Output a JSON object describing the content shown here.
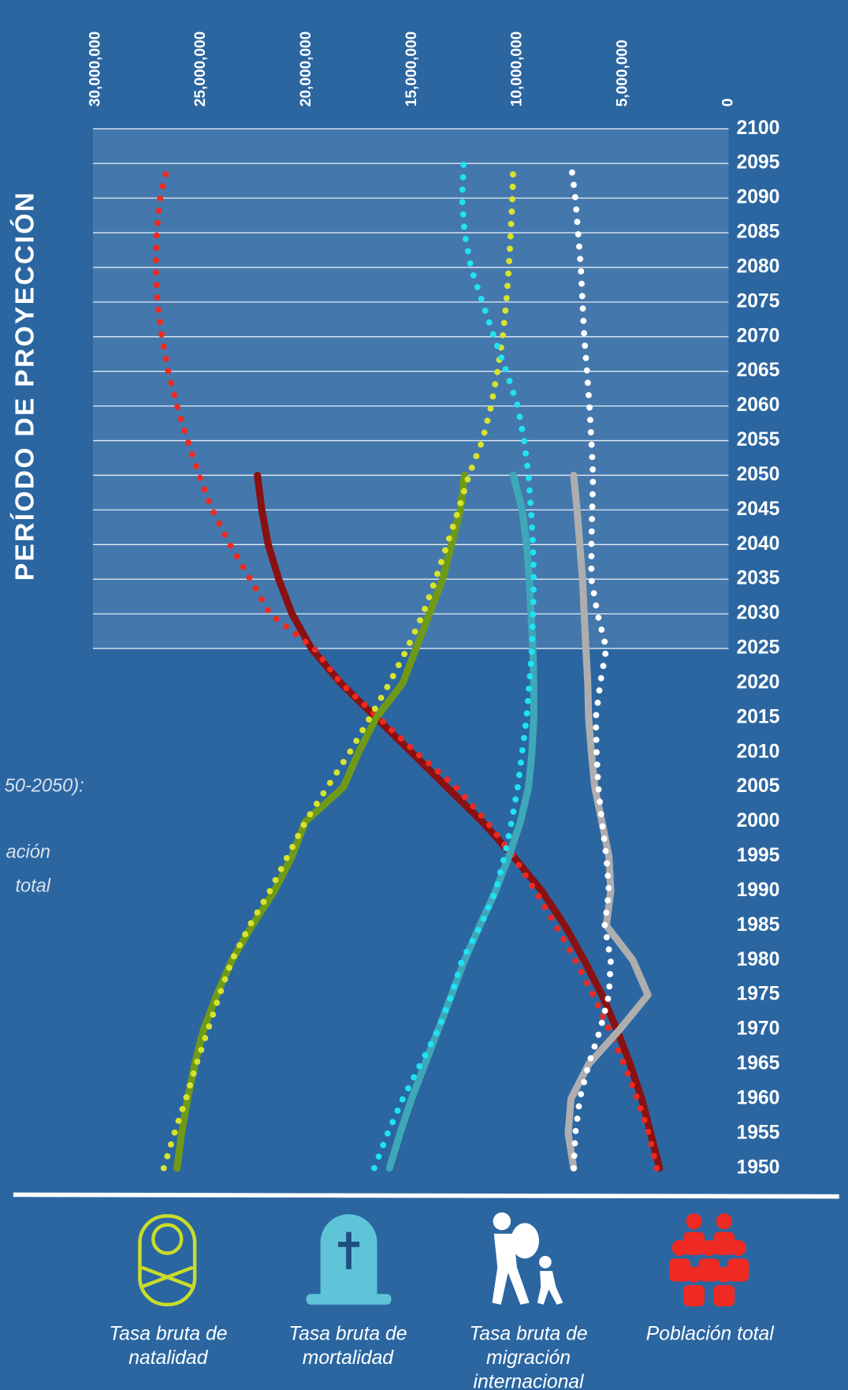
{
  "chart_data": {
    "type": "line",
    "y_title": "PERÍODO DE PROYECCIÓN",
    "annotations": [
      "50-2050):",
      "ación",
      "total"
    ],
    "x": [
      1950,
      1955,
      1960,
      1965,
      1970,
      1975,
      1980,
      1985,
      1990,
      1995,
      2000,
      2005,
      2010,
      2015,
      2020,
      2025,
      2030,
      2035,
      2040,
      2045,
      2050,
      2055,
      2060,
      2065,
      2070,
      2075,
      2080,
      2085,
      2090,
      2095,
      2100
    ],
    "xlim": [
      30000000,
      0
    ],
    "xticks": [
      {
        "value": 30000000,
        "label": "30,000,000"
      },
      {
        "value": 25000000,
        "label": "25,000,000"
      },
      {
        "value": 20000000,
        "label": "20,000,000"
      },
      {
        "value": 15000000,
        "label": "15,000,000"
      },
      {
        "value": 10000000,
        "label": "10,000,000"
      },
      {
        "value": 5000000,
        "label": "5,000,000"
      },
      0
    ],
    "ylim": [
      1950,
      2100
    ],
    "yticks": [
      1950,
      1955,
      1960,
      1965,
      1970,
      1975,
      1980,
      1985,
      1990,
      1995,
      2000,
      2005,
      2010,
      2015,
      2020,
      2025,
      2030,
      2035,
      2040,
      2045,
      2050,
      2055,
      2060,
      2065,
      2070,
      2075,
      2080,
      2085,
      2090,
      2095,
      2100
    ],
    "projection_start": 2025,
    "grid": true,
    "series": [
      {
        "color": "#8a1111",
        "style": "solid",
        "values": [
          3270000,
          3690000,
          4110000,
          4660000,
          5290000,
          6000000,
          6840000,
          7760000,
          8850000,
          10200000,
          11670000,
          13350000,
          15020000,
          16700000,
          18380000,
          19770000,
          20690000,
          21320000,
          21820000,
          22120000,
          22330000,
          null,
          null,
          null,
          null,
          null,
          null,
          null,
          null,
          null,
          null
        ]
      },
      {
        "color": "#ee2a22",
        "style": "dotted",
        "values": [
          3400000,
          3780000,
          4320000,
          4950000,
          5670000,
          6420000,
          7260000,
          8180000,
          9150000,
          10200000,
          11460000,
          12920000,
          14810000,
          16580000,
          18380000,
          19640000,
          21740000,
          22660000,
          23630000,
          24470000,
          25100000,
          25640000,
          26140000,
          26560000,
          26860000,
          27070000,
          27150000,
          27110000,
          26940000,
          26560000,
          null
        ]
      },
      {
        "color": "#6f9a18",
        "style": "solid",
        "values": [
          26140000,
          25930000,
          25640000,
          25300000,
          24880000,
          24260000,
          23540000,
          22580000,
          21530000,
          20690000,
          20060000,
          18250000,
          17540000,
          16700000,
          15440000,
          14810000,
          14180000,
          13550000,
          13130000,
          12710000,
          12510000,
          null,
          null,
          null,
          null,
          null,
          null,
          null,
          null,
          null,
          null
        ]
      },
      {
        "color": "#d8e42c",
        "style": "dotted",
        "values": [
          26770000,
          26270000,
          25720000,
          25220000,
          24670000,
          24130000,
          23540000,
          22700000,
          21740000,
          20900000,
          20060000,
          19010000,
          17960000,
          17000000,
          16070000,
          15230000,
          14480000,
          13890000,
          13340000,
          12800000,
          12300000,
          11670000,
          11250000,
          10950000,
          10700000,
          10530000,
          10410000,
          10320000,
          10240000,
          10200000,
          null
        ]
      },
      {
        "color": "#3ea8b8",
        "style": "solid",
        "values": [
          16070000,
          15570000,
          15020000,
          14390000,
          13760000,
          13130000,
          12510000,
          11790000,
          11040000,
          10410000,
          9860000,
          9480000,
          9320000,
          9230000,
          9230000,
          9270000,
          9360000,
          9440000,
          9570000,
          9780000,
          10200000,
          null,
          null,
          null,
          null,
          null,
          null,
          null,
          null,
          null,
          null
        ]
      },
      {
        "color": "#1fe3f2",
        "style": "dotted",
        "values": [
          16790000,
          16160000,
          15440000,
          14600000,
          13760000,
          13130000,
          12630000,
          11750000,
          11040000,
          10620000,
          10280000,
          9990000,
          9780000,
          9570000,
          9440000,
          9320000,
          9270000,
          9230000,
          9270000,
          9360000,
          9480000,
          9690000,
          9990000,
          10530000,
          11120000,
          11670000,
          12210000,
          12510000,
          12630000,
          12550000,
          null
        ]
      },
      {
        "color": "#aeaeae",
        "style": "solid",
        "values": [
          7340000,
          7600000,
          7470000,
          6630000,
          5160000,
          3820000,
          4530000,
          5790000,
          5580000,
          5670000,
          6000000,
          6340000,
          6500000,
          6630000,
          6670000,
          6760000,
          6840000,
          6920000,
          7050000,
          7180000,
          7340000,
          null,
          null,
          null,
          null,
          null,
          null,
          null,
          null,
          null,
          null
        ]
      },
      {
        "color": "#ffffff",
        "style": "dotted",
        "values": [
          7340000,
          7260000,
          7050000,
          6630000,
          6080000,
          5670000,
          5580000,
          5870000,
          5670000,
          5790000,
          6000000,
          6170000,
          6250000,
          6290000,
          6080000,
          5790000,
          6210000,
          6500000,
          6500000,
          6460000,
          6420000,
          6500000,
          6590000,
          6710000,
          6840000,
          6920000,
          7000000,
          7130000,
          7260000,
          7470000,
          null
        ]
      }
    ],
    "legend": [
      {
        "label": [
          "Tasa bruta de",
          "natalidad"
        ],
        "color": "#c9dc2a"
      },
      {
        "label": [
          "Tasa bruta de",
          "mortalidad"
        ],
        "color": "#5fc4d8"
      },
      {
        "label": [
          "Tasa bruta de",
          "migración",
          "internacional"
        ],
        "color": "#ffffff"
      },
      {
        "label": [
          "Población total"
        ],
        "color": "#ee2a22"
      }
    ]
  }
}
